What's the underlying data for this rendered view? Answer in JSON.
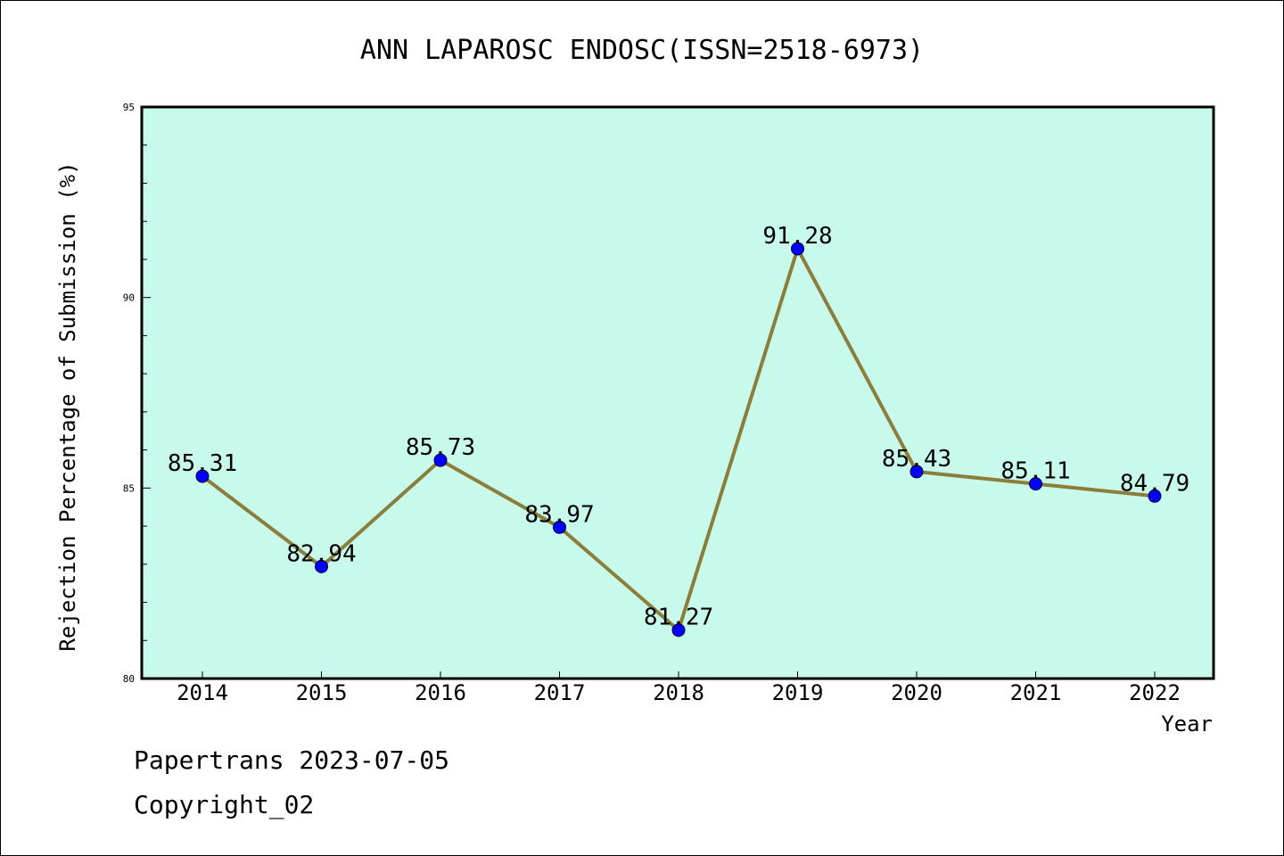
{
  "chart_data": {
    "type": "line",
    "title": "ANN LAPAROSC ENDOSC(ISSN=2518-6973)",
    "xlabel": "Year",
    "ylabel": "Rejection Percentage of Submission (%)",
    "categories": [
      "2014",
      "2015",
      "2016",
      "2017",
      "2018",
      "2019",
      "2020",
      "2021",
      "2022"
    ],
    "series": [
      {
        "values": [
          85.31,
          82.94,
          85.73,
          83.97,
          81.27,
          91.28,
          85.43,
          85.11,
          84.79
        ],
        "labels": [
          "85.31",
          "82.94",
          "85.73",
          "83.97",
          "81.27",
          "91.28",
          "85.43",
          "85.11",
          "84.79"
        ],
        "line_color": "#8B7D3A",
        "marker_color": "#0000FF"
      }
    ],
    "ylim": [
      80,
      95
    ],
    "yticks": [
      "80",
      "85",
      "90",
      "95"
    ],
    "plot_background": "#C8FAEC",
    "grid": false,
    "legend": "none"
  },
  "footer": {
    "line1": "Papertrans 2023-07-05",
    "line2": "Copyright_02"
  }
}
